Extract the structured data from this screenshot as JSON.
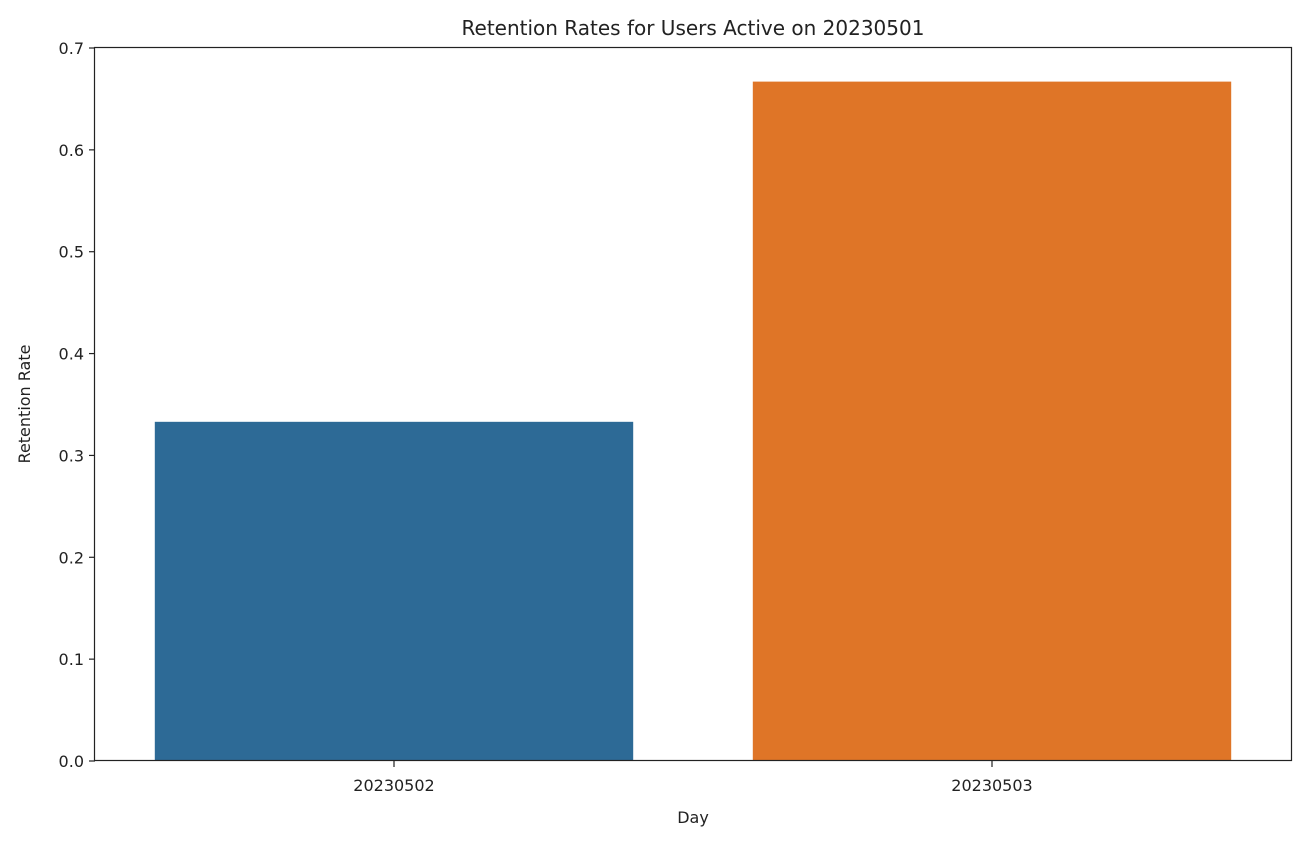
{
  "chart_data": {
    "type": "bar",
    "title": "Retention Rates for Users Active on 20230501",
    "xlabel": "Day",
    "ylabel": "Retention Rate",
    "categories": [
      "20230502",
      "20230503"
    ],
    "values": [
      0.333,
      0.667
    ],
    "bar_colors": [
      "#2d6a96",
      "#df7527"
    ],
    "ylim": [
      0,
      0.7
    ],
    "yticks": [
      "0.0",
      "0.1",
      "0.2",
      "0.3",
      "0.4",
      "0.5",
      "0.6",
      "0.7"
    ],
    "grid": false,
    "legend": "none"
  }
}
